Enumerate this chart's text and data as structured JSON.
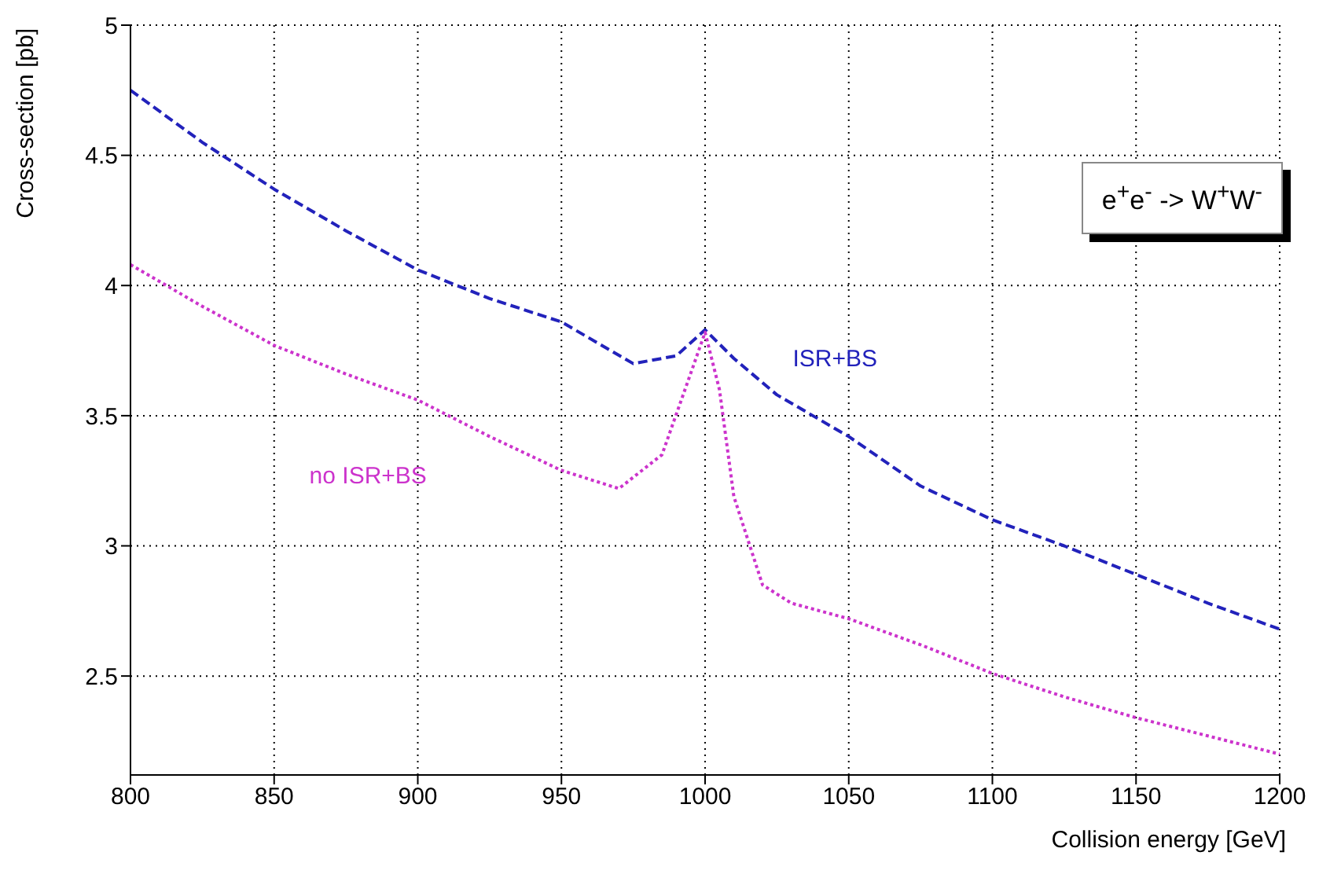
{
  "chart_data": {
    "type": "line",
    "xlabel": "Collision energy [GeV]",
    "ylabel": "Cross-section [pb]",
    "annotations": [
      "e$^{+}$e$^{-}$ -> W$^{+}$W$^{-}$"
    ],
    "xlim": [
      800,
      1200
    ],
    "xticks": [
      800,
      850,
      900,
      950,
      1000,
      1050,
      1100,
      1150,
      1200
    ],
    "ylim": [
      2.12,
      5
    ],
    "yticks": [
      2.5,
      3,
      3.5,
      4,
      4.5,
      5
    ],
    "grid": true,
    "marker": "none",
    "series": [
      {
        "name": "ISR+BS",
        "color": "#2222bb",
        "line_style": "dashed",
        "x": [
          800,
          825,
          850,
          875,
          900,
          925,
          950,
          975,
          990,
          1000,
          1010,
          1025,
          1050,
          1075,
          1100,
          1125,
          1150,
          1175,
          1200
        ],
        "values": [
          4.75,
          4.55,
          4.37,
          4.21,
          4.06,
          3.95,
          3.86,
          3.7,
          3.73,
          3.83,
          3.72,
          3.58,
          3.42,
          3.23,
          3.1,
          3,
          2.89,
          2.78,
          2.68
        ]
      },
      {
        "name": "no ISR+BS",
        "color": "#cc33cc",
        "line_style": "dotted",
        "x": [
          800,
          825,
          850,
          875,
          900,
          925,
          950,
          970,
          985,
          993,
          1000,
          1005,
          1010,
          1020,
          1030,
          1050,
          1075,
          1100,
          1125,
          1150,
          1175,
          1200
        ],
        "values": [
          4.08,
          3.92,
          3.77,
          3.66,
          3.56,
          3.42,
          3.29,
          3.22,
          3.35,
          3.6,
          3.82,
          3.6,
          3.19,
          2.85,
          2.78,
          2.72,
          2.62,
          2.51,
          2.42,
          2.34,
          2.27,
          2.2
        ]
      }
    ]
  }
}
